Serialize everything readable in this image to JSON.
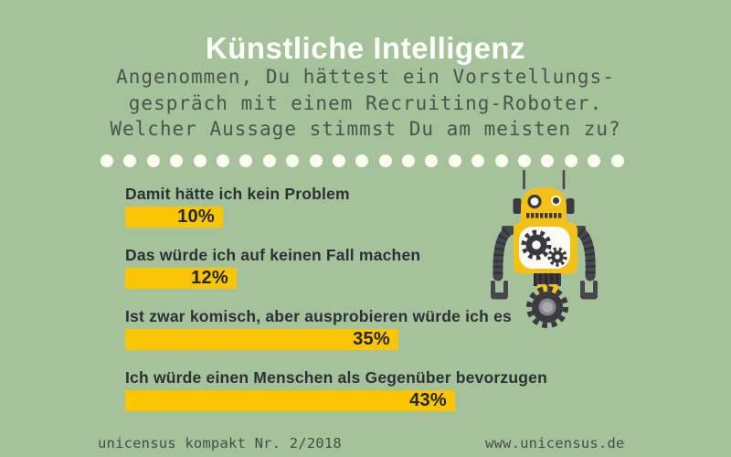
{
  "header": {
    "title": "Künstliche Intelligenz",
    "question_lines": [
      "Angenommen, Du hättest ein Vorstellungs-",
      "gespräch mit einem Recruiting-Roboter.",
      "Welcher Aussage stimmst Du am meisten zu?"
    ]
  },
  "chart_data": {
    "type": "bar",
    "orientation": "horizontal",
    "title": "Künstliche Intelligenz",
    "question": "Angenommen, Du hättest ein Vorstellungsgespräch mit einem Recruiting-Roboter. Welcher Aussage stimmst Du am meisten zu?",
    "categories": [
      "Damit hätte ich kein Problem",
      "Das würde ich auf keinen Fall machen",
      "Ist zwar komisch, aber ausprobieren würde ich es",
      "Ich würde einen Menschen als Gegenüber bevorzugen"
    ],
    "values": [
      10,
      12,
      35,
      43
    ],
    "unit": "%",
    "value_labels": [
      "10%",
      "12%",
      "35%",
      "43%"
    ],
    "xlim": [
      0,
      50
    ],
    "grid": false,
    "legend": "none",
    "bar_color": "#fac502"
  },
  "decorations": {
    "dots_count": 23,
    "robot": "yellow-robot-with-gears"
  },
  "footer": {
    "left": "unicensus kompakt Nr. 2/2018",
    "right": "www.unicensus.de"
  },
  "colors": {
    "background": "#a6c29b",
    "title_text": "#fefefc",
    "question_text": "#4b534f",
    "category_label_text": "#2b3136",
    "bar_fill": "#fac502",
    "value_text": "#23272c",
    "dot": "#fdfdf4",
    "robot_yellow": "#f4c118",
    "robot_dark": "#3a3a40",
    "robot_arm_gray": "#46464c",
    "footer_text": "#454d49"
  }
}
